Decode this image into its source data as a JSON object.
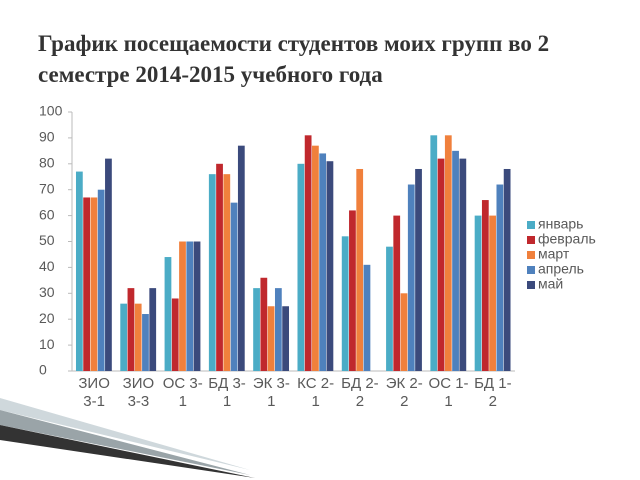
{
  "chart_data": {
    "type": "bar",
    "title": "График посещаемости студентов моих групп во 2 семестре 2014-2015 учебного года",
    "categories": [
      "ЗИО 3-1",
      "ЗИО 3-3",
      "ОС 3-1",
      "БД 3-1",
      "ЭК 3-1",
      "КС 2-1",
      "БД 2-2",
      "ЭК 2-2",
      "ОС 1-1",
      "БД 1-2"
    ],
    "series": [
      {
        "name": "январь",
        "color": "#4bacc6",
        "values": [
          77,
          26,
          44,
          76,
          32,
          80,
          52,
          48,
          91,
          60
        ]
      },
      {
        "name": "февраль",
        "color": "#c0282d",
        "values": [
          67,
          32,
          28,
          80,
          36,
          91,
          62,
          60,
          82,
          66
        ]
      },
      {
        "name": "март",
        "color": "#f0803c",
        "values": [
          67,
          26,
          50,
          76,
          25,
          87,
          78,
          30,
          91,
          60
        ]
      },
      {
        "name": "апрель",
        "color": "#4f81bd",
        "values": [
          70,
          22,
          50,
          65,
          32,
          84,
          41,
          72,
          85,
          72
        ]
      },
      {
        "name": "май",
        "color": "#3b4a7c",
        "values": [
          82,
          32,
          50,
          87,
          25,
          81,
          null,
          78,
          82,
          78
        ]
      }
    ],
    "ylim": [
      0,
      100
    ],
    "yticks": [
      0,
      10,
      20,
      30,
      40,
      50,
      60,
      70,
      80,
      90,
      100
    ],
    "grid": false,
    "legend": "right"
  }
}
